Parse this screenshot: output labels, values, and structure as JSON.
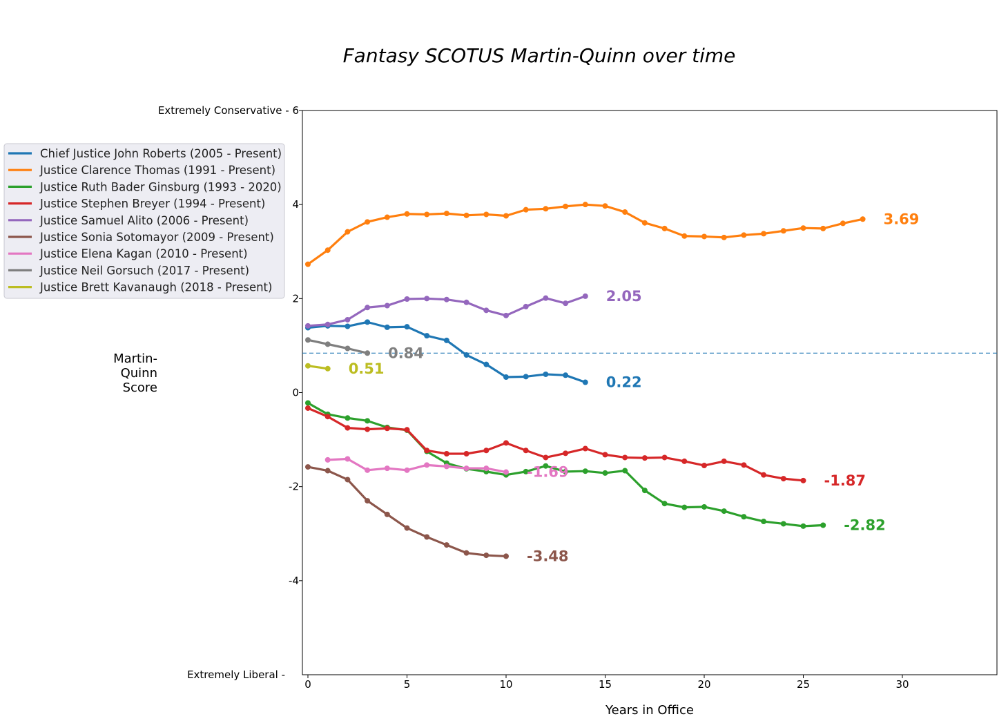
{
  "chart_data": {
    "type": "line",
    "title": "Fantasy SCOTUS Martin-Quinn over time",
    "xlabel": "Years in Office",
    "ylabel": "Martin-\nQuinn\nScore",
    "xlim": [
      0,
      35
    ],
    "ylim": [
      -6,
      6
    ],
    "x_ticks": [
      "0",
      "5",
      "10",
      "15",
      "20",
      "25",
      "30"
    ],
    "y_ticks": [
      {
        "value": 6,
        "label": "Extremely Conservative - 6"
      },
      {
        "value": 4,
        "label": "4"
      },
      {
        "value": 2,
        "label": "2"
      },
      {
        "value": 0,
        "label": "0"
      },
      {
        "value": -2,
        "label": "-2"
      },
      {
        "value": -4,
        "label": "-4"
      },
      {
        "value": -6,
        "label": "Extremely Liberal -"
      }
    ],
    "reference_line": {
      "y": 0.84,
      "style": "dashed",
      "color": "#1f77b4"
    },
    "legend_position": "upper-left (outside plot)",
    "series": [
      {
        "name": "Chief Justice John Roberts (2005 - Present)",
        "color": "#1f77b4",
        "x": [
          0,
          1,
          2,
          3,
          4,
          5,
          6,
          7,
          8,
          9,
          10,
          11,
          12,
          13,
          14
        ],
        "y": [
          1.38,
          1.42,
          1.41,
          1.5,
          1.39,
          1.4,
          1.21,
          1.11,
          0.8,
          0.6,
          0.33,
          0.34,
          0.39,
          0.37,
          0.22
        ],
        "end_label": "0.22"
      },
      {
        "name": "Justice Clarence Thomas (1991 - Present)",
        "color": "#ff7f0e",
        "x": [
          0,
          1,
          2,
          3,
          4,
          5,
          6,
          7,
          8,
          9,
          10,
          11,
          12,
          13,
          14,
          15,
          16,
          17,
          18,
          19,
          20,
          21,
          22,
          23,
          24,
          25,
          26,
          27,
          28
        ],
        "y": [
          2.73,
          3.03,
          3.42,
          3.63,
          3.73,
          3.8,
          3.79,
          3.81,
          3.77,
          3.79,
          3.76,
          3.89,
          3.91,
          3.96,
          4.0,
          3.97,
          3.84,
          3.61,
          3.49,
          3.33,
          3.32,
          3.3,
          3.35,
          3.38,
          3.44,
          3.5,
          3.49,
          3.6,
          3.69
        ],
        "end_label": "3.69"
      },
      {
        "name": "Justice Ruth Bader Ginsburg (1993 - 2020)",
        "color": "#2ca02c",
        "x": [
          0,
          1,
          2,
          3,
          4,
          5,
          6,
          7,
          8,
          9,
          10,
          11,
          12,
          13,
          14,
          15,
          16,
          17,
          18,
          19,
          20,
          21,
          22,
          23,
          24,
          25,
          26
        ],
        "y": [
          -0.22,
          -0.46,
          -0.54,
          -0.6,
          -0.74,
          -0.8,
          -1.25,
          -1.5,
          -1.62,
          -1.68,
          -1.75,
          -1.68,
          -1.56,
          -1.68,
          -1.67,
          -1.71,
          -1.66,
          -2.08,
          -2.36,
          -2.44,
          -2.43,
          -2.52,
          -2.64,
          -2.74,
          -2.79,
          -2.84,
          -2.82
        ],
        "end_label": "-2.82"
      },
      {
        "name": "Justice Stephen Breyer (1994 - Present)",
        "color": "#d62728",
        "x": [
          0,
          1,
          2,
          3,
          4,
          5,
          6,
          7,
          8,
          9,
          10,
          11,
          12,
          13,
          14,
          15,
          16,
          17,
          18,
          19,
          20,
          21,
          22,
          23,
          24,
          25
        ],
        "y": [
          -0.33,
          -0.51,
          -0.75,
          -0.78,
          -0.76,
          -0.79,
          -1.23,
          -1.3,
          -1.3,
          -1.23,
          -1.07,
          -1.23,
          -1.38,
          -1.29,
          -1.19,
          -1.32,
          -1.38,
          -1.39,
          -1.38,
          -1.46,
          -1.55,
          -1.46,
          -1.54,
          -1.75,
          -1.83,
          -1.87
        ],
        "end_label": "-1.87"
      },
      {
        "name": "Justice Samuel Alito (2006 - Present)",
        "color": "#9467bd",
        "x": [
          0,
          1,
          2,
          3,
          4,
          5,
          6,
          7,
          8,
          9,
          10,
          11,
          12,
          13,
          14
        ],
        "y": [
          1.42,
          1.45,
          1.55,
          1.81,
          1.85,
          1.99,
          2.0,
          1.98,
          1.92,
          1.75,
          1.64,
          1.83,
          2.01,
          1.9,
          2.05
        ],
        "end_label": "2.05"
      },
      {
        "name": "Justice Sonia Sotomayor (2009 - Present)",
        "color": "#8c564b",
        "x": [
          0,
          1,
          2,
          3,
          4,
          5,
          6,
          7,
          8,
          9,
          10
        ],
        "y": [
          -1.58,
          -1.66,
          -1.85,
          -2.3,
          -2.59,
          -2.88,
          -3.07,
          -3.24,
          -3.41,
          -3.46,
          -3.48
        ],
        "end_label": "-3.48"
      },
      {
        "name": "Justice Elena Kagan (2010 - Present)",
        "color": "#e377c2",
        "x": [
          1,
          2,
          3,
          4,
          5,
          6,
          7,
          8,
          9,
          10
        ],
        "y": [
          -1.43,
          -1.41,
          -1.65,
          -1.61,
          -1.65,
          -1.54,
          -1.57,
          -1.61,
          -1.61,
          -1.69
        ],
        "end_label": "-1.69"
      },
      {
        "name": "Justice Neil Gorsuch (2017 - Present)",
        "color": "#7f7f7f",
        "x": [
          0,
          1,
          2,
          3
        ],
        "y": [
          1.12,
          1.03,
          0.94,
          0.84
        ],
        "end_label": "0.84"
      },
      {
        "name": "Justice Brett Kavanaugh (2018 - Present)",
        "color": "#bcbd22",
        "x": [
          0,
          1
        ],
        "y": [
          0.57,
          0.51
        ],
        "end_label": "0.51"
      }
    ]
  }
}
